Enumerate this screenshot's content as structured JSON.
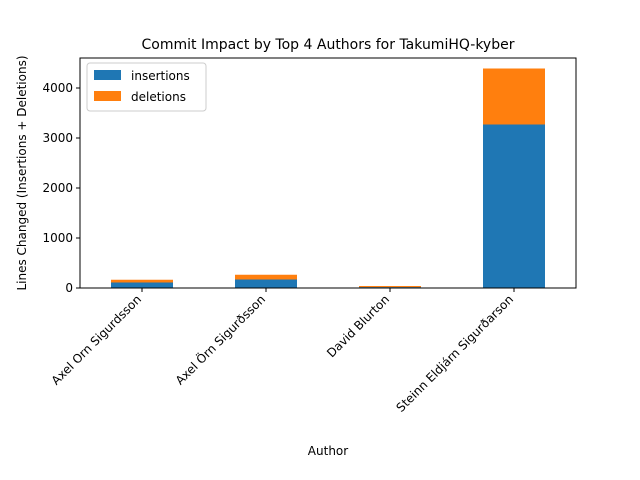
{
  "chart_data": {
    "type": "bar",
    "stacked": true,
    "title": "Commit Impact by Top 4 Authors for TakumiHQ-kyber",
    "xlabel": "Author",
    "ylabel": "Lines Changed (Insertions + Deletions)",
    "categories": [
      "Axel Orn Sigurdsson",
      "Axel Örn Sigurðsson",
      "David Blurton",
      "Steinn Eldjárn Sigurðarson"
    ],
    "series": [
      {
        "name": "insertions",
        "color": "#1f77b4",
        "values": [
          110,
          170,
          18,
          3270
        ]
      },
      {
        "name": "deletions",
        "color": "#ff7f0e",
        "values": [
          55,
          95,
          22,
          1120
        ]
      }
    ],
    "ylim": [
      0,
      4600
    ],
    "yticks": [
      0,
      1000,
      2000,
      3000,
      4000
    ],
    "grid": false,
    "legend_position": "top-left"
  }
}
